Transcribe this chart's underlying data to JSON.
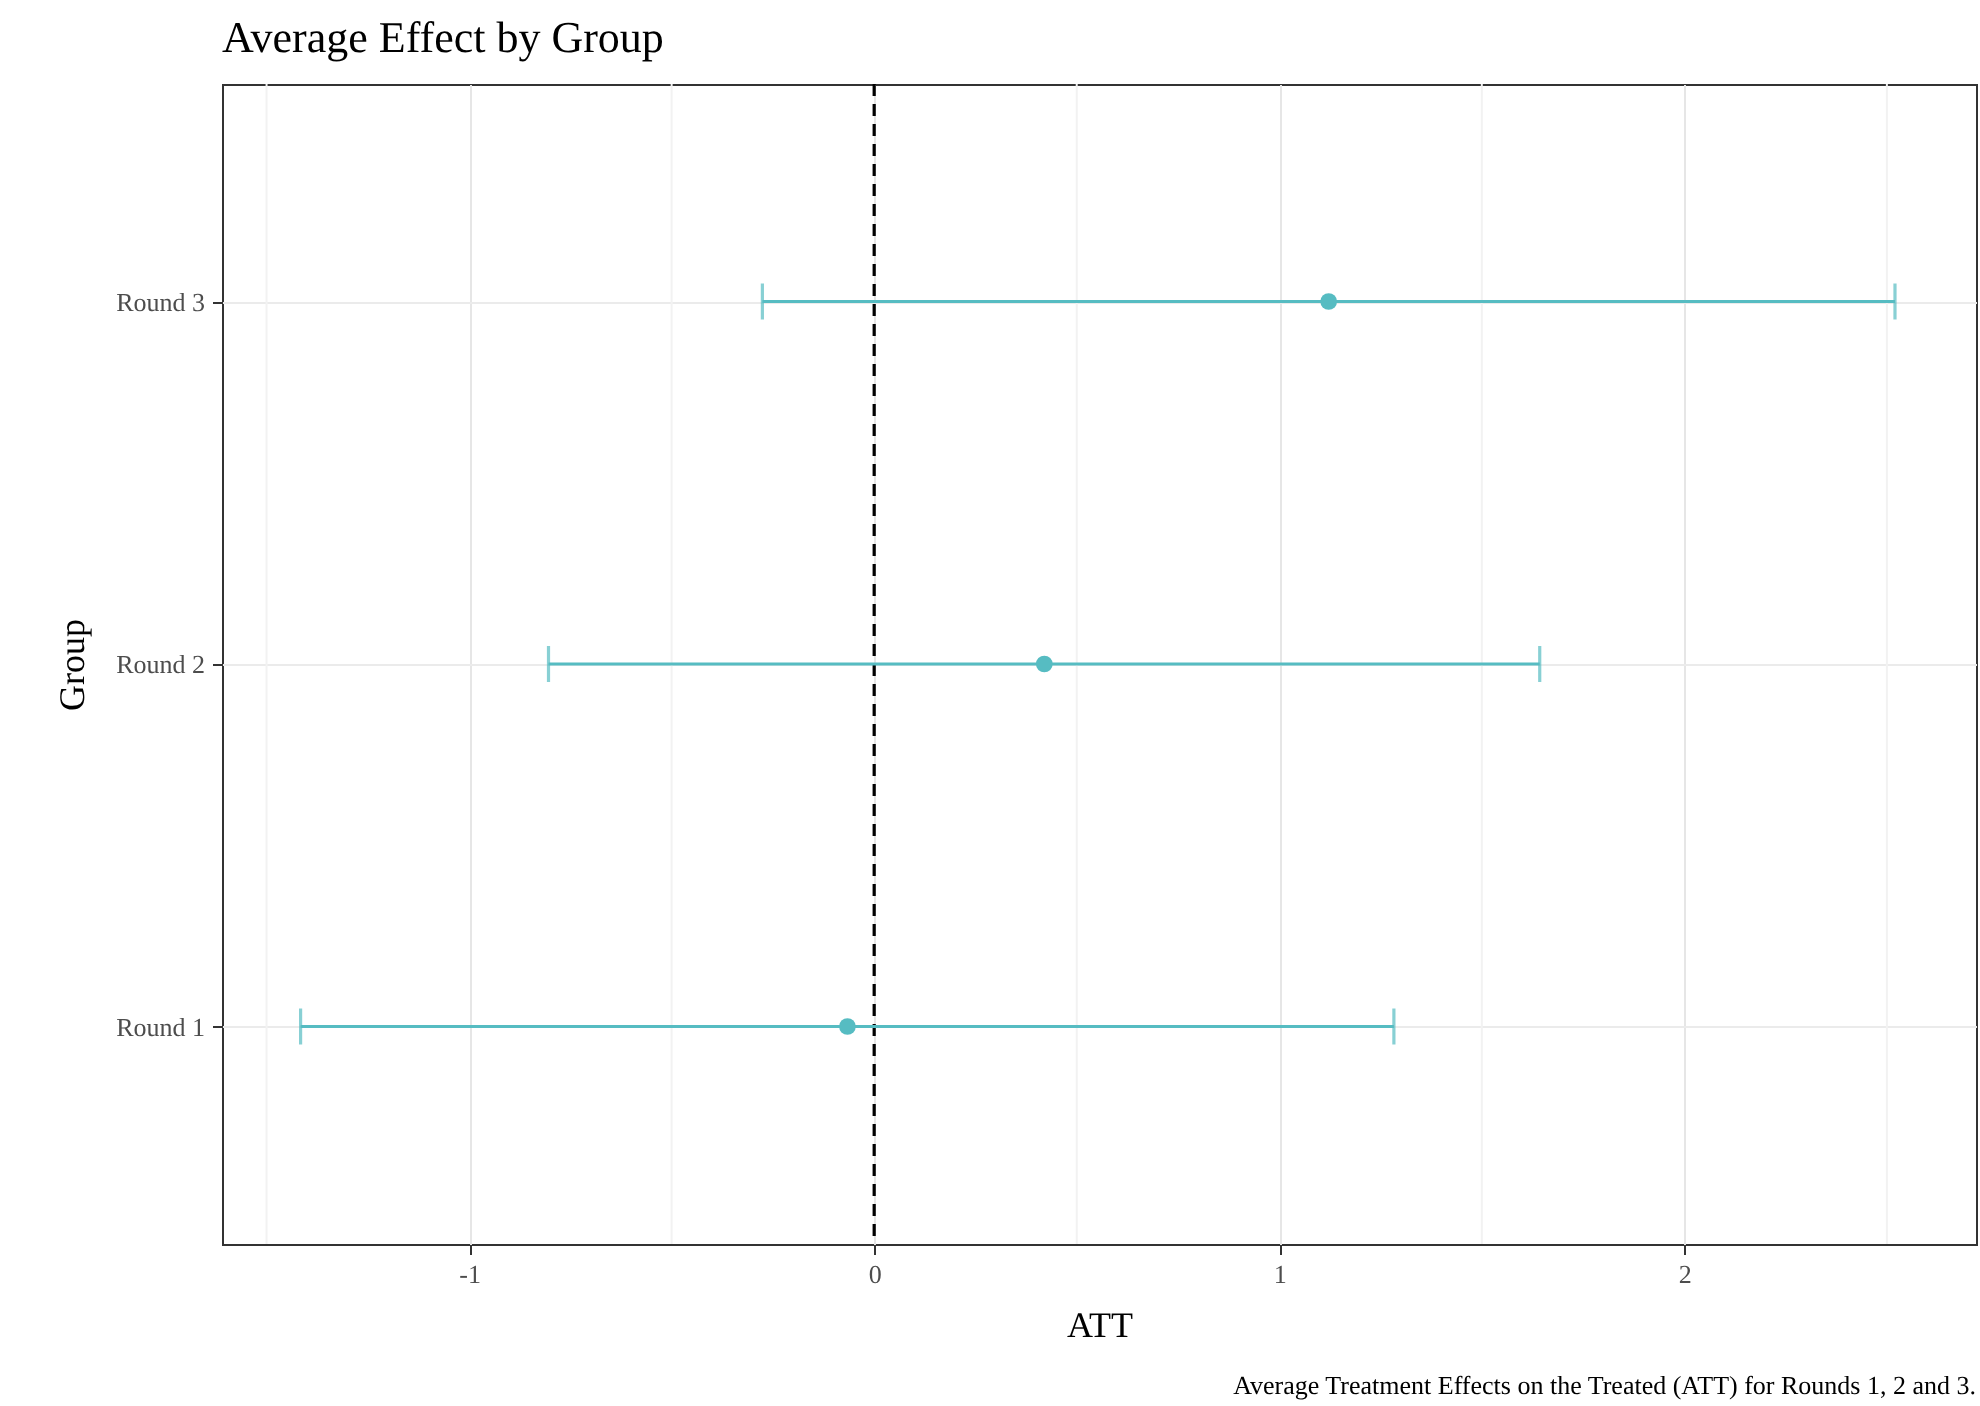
{
  "chart_data": {
    "type": "scatter",
    "title": "Average Effect by Group",
    "xlabel": "ATT",
    "ylabel": "Group",
    "orientation": "horizontal",
    "categories": [
      "Round 3",
      "Round 2",
      "Round 1"
    ],
    "series": [
      {
        "color": "#56bcc2",
        "values": [
          1.122,
          0.42,
          -0.066
        ],
        "errors": [
          [
            -0.276,
            2.52
          ],
          [
            -0.804,
            1.643
          ],
          [
            -1.416,
            1.283
          ]
        ]
      }
    ],
    "xlim": [
      -1.61,
      2.72
    ],
    "xticks": [
      {
        "value": -1.5,
        "label": null
      },
      -1,
      {
        "value": -0.5,
        "label": null
      },
      0,
      {
        "value": 0.5,
        "label": null
      },
      1,
      {
        "value": 1.5,
        "label": null
      },
      2,
      {
        "value": 2.5,
        "label": null
      }
    ],
    "ref_lines": [
      {
        "axis": "x",
        "value": 0,
        "color": "#000000",
        "line_style": "dashed"
      }
    ],
    "grid": true,
    "marker": "circle",
    "annotations": [
      "Average Treatment Effects on the Treated (ATT) for Rounds 1, 2 and 3."
    ]
  }
}
